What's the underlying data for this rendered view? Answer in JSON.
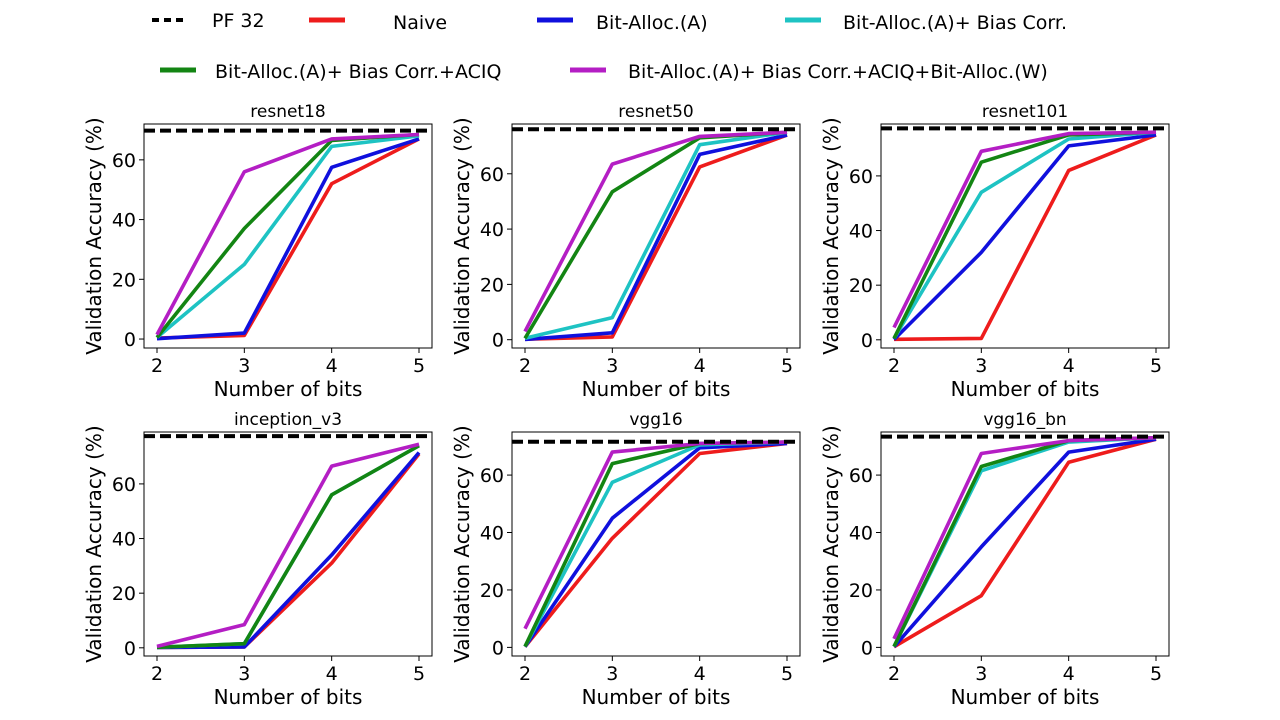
{
  "chart_data": {
    "type": "line",
    "legend": [
      {
        "key": "pf32",
        "name": "PF 32",
        "color": "#000000",
        "dashed": true
      },
      {
        "key": "naive",
        "name": "Naive",
        "color": "#ee1c1c",
        "dashed": false
      },
      {
        "key": "ba",
        "name": "Bit-Alloc.(A)",
        "color": "#1010dd",
        "dashed": false
      },
      {
        "key": "babc",
        "name": "Bit-Alloc.(A)+ Bias Corr.",
        "color": "#1ec3c3",
        "dashed": false
      },
      {
        "key": "babcaciq",
        "name": "Bit-Alloc.(A)+ Bias Corr.+ACIQ",
        "color": "#138513",
        "dashed": false
      },
      {
        "key": "full",
        "name": "Bit-Alloc.(A)+ Bias Corr.+ACIQ+Bit-Alloc.(W)",
        "color": "#b41ec4",
        "dashed": false
      }
    ],
    "x": [
      2,
      3,
      4,
      5
    ],
    "xlabel": "Number of bits",
    "ylabel": "Validation Accuracy (%)",
    "panels": [
      {
        "title": "resnet18",
        "ylim": [
          -3,
          72
        ],
        "yticks": [
          0,
          20,
          40,
          60
        ],
        "baseline": 69.8,
        "series": {
          "naive": [
            0.3,
            1.2,
            52,
            67
          ],
          "ba": [
            0.1,
            2,
            57.5,
            67
          ],
          "babc": [
            0.5,
            25,
            64.5,
            68
          ],
          "babcaciq": [
            0.5,
            37,
            66.5,
            68.5
          ],
          "full": [
            1.5,
            56,
            67,
            68.5
          ]
        }
      },
      {
        "title": "resnet50",
        "ylim": [
          -3,
          78
        ],
        "yticks": [
          0,
          20,
          40,
          60
        ],
        "baseline": 76.1,
        "series": {
          "naive": [
            0.2,
            1,
            62.5,
            74
          ],
          "ba": [
            0.1,
            2.5,
            67,
            74
          ],
          "babc": [
            0.5,
            8,
            70.5,
            75
          ],
          "babcaciq": [
            0.5,
            53.5,
            73,
            75
          ],
          "full": [
            3,
            63.5,
            73.5,
            75
          ]
        }
      },
      {
        "title": "resnet101",
        "ylim": [
          -3,
          79
        ],
        "yticks": [
          0,
          20,
          40,
          60
        ],
        "baseline": 77.4,
        "series": {
          "naive": [
            0.2,
            0.5,
            62,
            75
          ],
          "ba": [
            0.1,
            32,
            71,
            75
          ],
          "babc": [
            0.5,
            54,
            73.5,
            76
          ],
          "babcaciq": [
            0.5,
            65,
            75,
            76
          ],
          "full": [
            4.5,
            69,
            75.5,
            76
          ]
        }
      },
      {
        "title": "inception_v3",
        "ylim": [
          -3,
          79
        ],
        "yticks": [
          0,
          20,
          40,
          60
        ],
        "baseline": 77.5,
        "series": {
          "naive": [
            0.1,
            0.3,
            31,
            71
          ],
          "ba": [
            0.1,
            0.3,
            34,
            71.5
          ],
          "babc": [
            0.2,
            1.5,
            56,
            74
          ],
          "babcaciq": [
            0.2,
            1.5,
            56,
            74
          ],
          "full": [
            0.5,
            8.5,
            66.5,
            74.5
          ]
        }
      },
      {
        "title": "vgg16",
        "ylim": [
          -3,
          75
        ],
        "yticks": [
          0,
          20,
          40,
          60
        ],
        "baseline": 71.6,
        "series": {
          "naive": [
            0.2,
            38,
            67.5,
            71
          ],
          "ba": [
            0.2,
            45,
            69.5,
            71
          ],
          "babc": [
            0.3,
            57.5,
            70.5,
            71.5
          ],
          "babcaciq": [
            0.3,
            64,
            71,
            71.5
          ],
          "full": [
            6.5,
            68,
            71,
            71.5
          ]
        }
      },
      {
        "title": "vgg16_bn",
        "ylim": [
          -3,
          75
        ],
        "yticks": [
          0,
          20,
          40,
          60
        ],
        "baseline": 73.4,
        "series": {
          "naive": [
            0.2,
            18,
            64.5,
            72.5
          ],
          "ba": [
            0.2,
            35,
            68,
            72.5
          ],
          "babc": [
            0.3,
            61.5,
            71.5,
            73
          ],
          "babcaciq": [
            0.3,
            63,
            72,
            73
          ],
          "full": [
            3,
            67.5,
            72,
            73
          ]
        }
      }
    ]
  }
}
